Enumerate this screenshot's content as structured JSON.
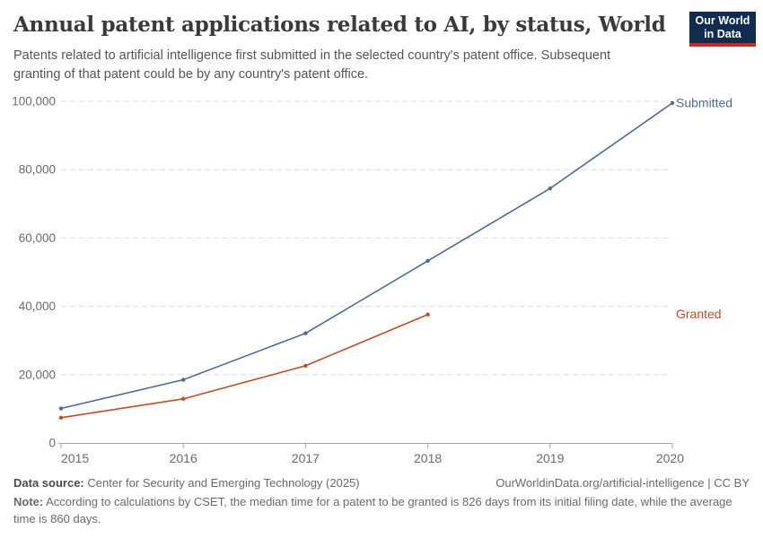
{
  "header": {
    "title": "Annual patent applications related to AI, by status, World",
    "subtitle": "Patents related to artificial intelligence first submitted in the selected country's patent office. Subsequent\ngranting of that patent could be by any country's patent office.",
    "logo": {
      "line1": "Our World",
      "line2": "in Data",
      "bg_color": "#102D50",
      "accent_color": "#C62A21"
    }
  },
  "chart_data": {
    "type": "line",
    "title": "Annual patent applications related to AI, by status, World",
    "x": [
      "2015",
      "2016",
      "2017",
      "2018",
      "2019",
      "2020"
    ],
    "series": [
      {
        "name": "Submitted",
        "color": "#4C6A9C",
        "values": [
          10100,
          18500,
          32100,
          53300,
          74500,
          99500
        ]
      },
      {
        "name": "Granted",
        "color": "#C24D22",
        "values": [
          7400,
          12900,
          22600,
          37600
        ]
      }
    ],
    "xlabel": "",
    "ylabel": "",
    "ylim": [
      0,
      100000
    ],
    "yticks": [
      0,
      20000,
      40000,
      60000,
      80000,
      100000
    ],
    "ytick_labels": [
      "0",
      "20,000",
      "40,000",
      "60,000",
      "80,000",
      "100,000"
    ],
    "grid": "horizontal-dashed",
    "legend_position": "line-end-labels-right",
    "grid_color": "#dcdcdc",
    "axis_color": "#a5a5a5",
    "tick_label_color": "#6b6b6b"
  },
  "footer": {
    "datasource_label": "Data source:",
    "datasource_value": " Center for Security and Emerging Technology (2025)",
    "link": "OurWorldinData.org/artificial-intelligence | CC BY",
    "note_label": "Note:",
    "note_value": " According to calculations by CSET, the median time for a patent to be granted is 826 days from its initial filing date, while the average\ntime is 860 days."
  }
}
